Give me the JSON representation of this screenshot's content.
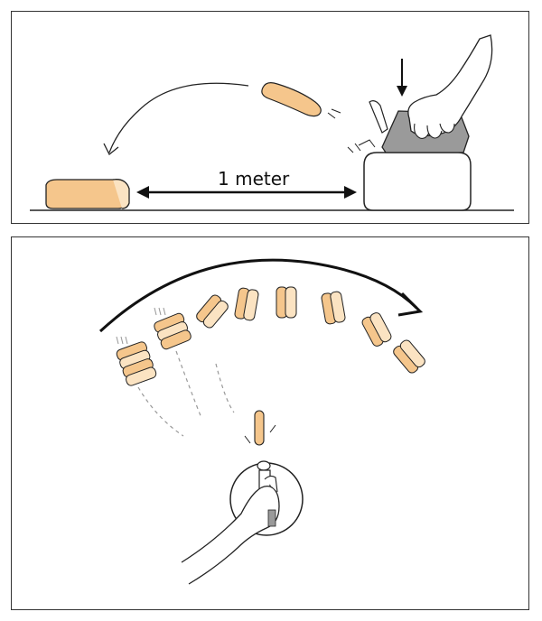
{
  "top_panel": {
    "distance_label": "1 meter"
  },
  "colors": {
    "toast_fill": "#f5c68c",
    "toast_light": "#fbe3c2",
    "toast_dark": "#e9a160",
    "ink": "#222222",
    "toaster_grey": "#9a9a9a"
  }
}
